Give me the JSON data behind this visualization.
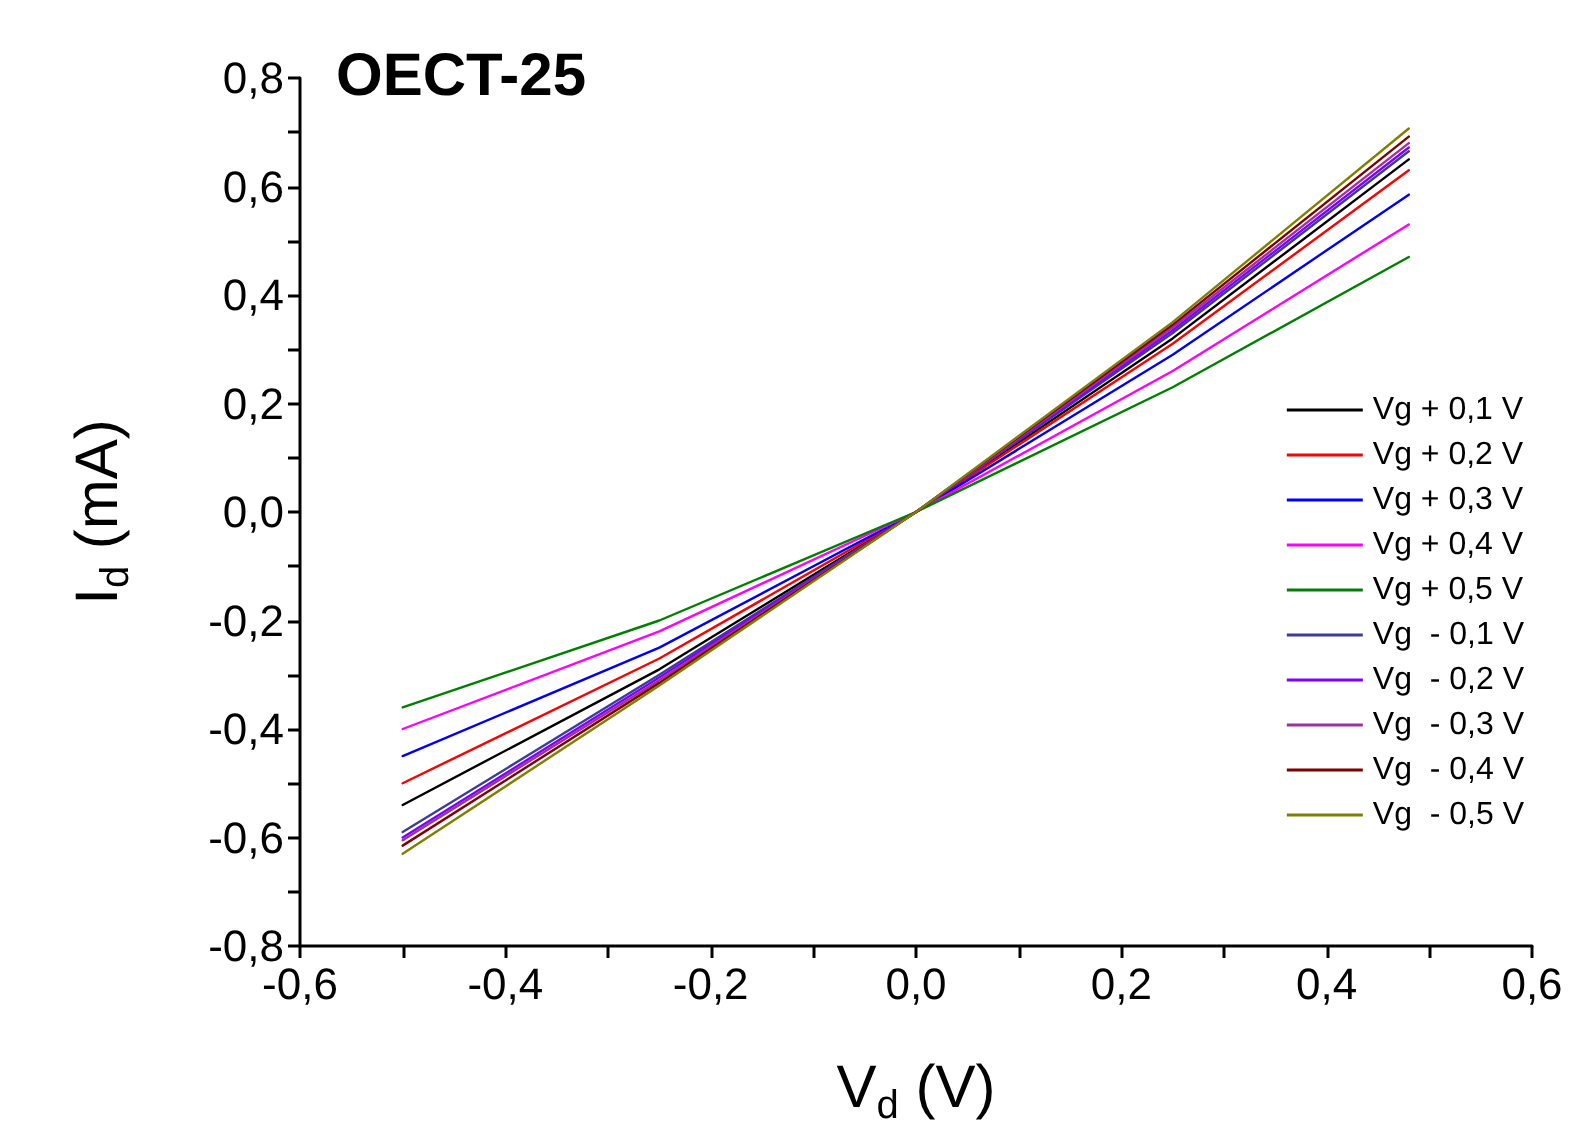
{
  "chart_data": {
    "type": "line",
    "title": "OECT-25",
    "xlabel": "V$_{d}$ (V)",
    "ylabel": "I$_{d}$ (mA)",
    "x": [
      -0.5,
      -0.25,
      0,
      0.25,
      0.48
    ],
    "series": [
      {
        "name": "Vg + 0,1 V",
        "color": "#000000",
        "values": [
          -0.54,
          -0.29,
          0,
          0.32,
          0.65
        ]
      },
      {
        "name": "Vg + 0,2 V",
        "color": "#ff0000",
        "values": [
          -0.5,
          -0.27,
          0,
          0.31,
          0.63
        ]
      },
      {
        "name": "Vg + 0,3 V",
        "color": "#0000ff",
        "values": [
          -0.45,
          -0.25,
          0,
          0.29,
          0.585
        ]
      },
      {
        "name": "Vg + 0,4 V",
        "color": "#ff00ff",
        "values": [
          -0.4,
          -0.22,
          0,
          0.26,
          0.53
        ]
      },
      {
        "name": "Vg + 0,5 V",
        "color": "#008000",
        "values": [
          -0.36,
          -0.2,
          0,
          0.23,
          0.47
        ]
      },
      {
        "name": "Vg  - 0,1 V",
        "color": "#3c3c99",
        "values": [
          -0.59,
          -0.3,
          0,
          0.33,
          0.665
        ]
      },
      {
        "name": "Vg  - 0,2 V",
        "color": "#8000ff",
        "values": [
          -0.6,
          -0.305,
          0,
          0.335,
          0.672
        ]
      },
      {
        "name": "Vg  - 0,3 V",
        "color": "#a030a0",
        "values": [
          -0.605,
          -0.31,
          0,
          0.34,
          0.68
        ]
      },
      {
        "name": "Vg  - 0,4 V",
        "color": "#800000",
        "values": [
          -0.615,
          -0.315,
          0,
          0.345,
          0.692
        ]
      },
      {
        "name": "Vg  - 0,5 V",
        "color": "#808000",
        "values": [
          -0.63,
          -0.32,
          0,
          0.35,
          0.707
        ]
      }
    ],
    "xlim": [
      -0.6,
      0.6
    ],
    "xticks": [
      {
        "value": -0.6,
        "label": "-0,6"
      },
      {
        "value": -0.5,
        "label": null
      },
      {
        "value": -0.4,
        "label": "-0,4"
      },
      {
        "value": -0.3,
        "label": null
      },
      {
        "value": -0.2,
        "label": "-0,2"
      },
      {
        "value": -0.1,
        "label": null
      },
      {
        "value": 0,
        "label": "0,0"
      },
      {
        "value": 0.1,
        "label": null
      },
      {
        "value": 0.2,
        "label": "0,2"
      },
      {
        "value": 0.3,
        "label": null
      },
      {
        "value": 0.4,
        "label": "0,4"
      },
      {
        "value": 0.5,
        "label": null
      },
      {
        "value": 0.6,
        "label": "0,6"
      }
    ],
    "ylim": [
      -0.8,
      0.8
    ],
    "yticks": [
      {
        "value": -0.8,
        "label": "-0,8"
      },
      {
        "value": -0.7,
        "label": null
      },
      {
        "value": -0.6,
        "label": "-0,6"
      },
      {
        "value": -0.5,
        "label": null
      },
      {
        "value": -0.4,
        "label": "-0,4"
      },
      {
        "value": -0.3,
        "label": null
      },
      {
        "value": -0.2,
        "label": "-0,2"
      },
      {
        "value": -0.1,
        "label": null
      },
      {
        "value": 0,
        "label": "0,0"
      },
      {
        "value": 0.1,
        "label": null
      },
      {
        "value": 0.2,
        "label": "0,2"
      },
      {
        "value": 0.3,
        "label": null
      },
      {
        "value": 0.4,
        "label": "0,4"
      },
      {
        "value": 0.5,
        "label": null
      },
      {
        "value": 0.6,
        "label": "0,6"
      },
      {
        "value": 0.7,
        "label": null
      },
      {
        "value": 0.8,
        "label": "0,8"
      }
    ],
    "grid": false,
    "legend": "right",
    "marker": "none",
    "line_style": "solid"
  }
}
